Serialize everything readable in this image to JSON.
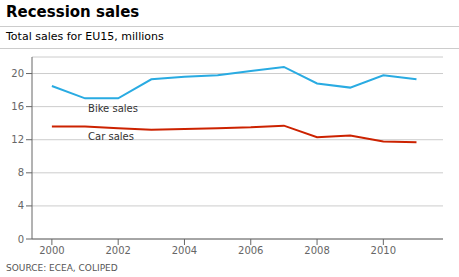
{
  "chart_data": {
    "type": "line",
    "title": "Recession sales",
    "subtitle": "Total sales for EU15, millions",
    "source": "SOURCE: ECEA, COLIPED",
    "x": [
      2000,
      2001,
      2002,
      2003,
      2004,
      2005,
      2006,
      2007,
      2008,
      2009,
      2010,
      2011
    ],
    "series": [
      {
        "color": "#29ABE2",
        "values": [
          18.5,
          17.0,
          17.0,
          19.3,
          19.6,
          19.8,
          20.3,
          20.8,
          18.8,
          18.3,
          19.8,
          19.3
        ]
      },
      {
        "color": "#CC2200",
        "values": [
          13.6,
          13.6,
          13.4,
          13.2,
          13.3,
          13.4,
          13.5,
          13.7,
          12.3,
          12.5,
          11.8,
          11.7
        ]
      }
    ],
    "annotations": [
      "Bike sales",
      "Car sales"
    ],
    "xlim": [
      1999.4,
      2011.8
    ],
    "xticks": [
      2000,
      2002,
      2004,
      2006,
      2008,
      2010
    ],
    "ylim": [
      0,
      22
    ],
    "yticks": [
      0,
      4,
      8,
      12,
      16,
      20
    ],
    "grid": true
  }
}
